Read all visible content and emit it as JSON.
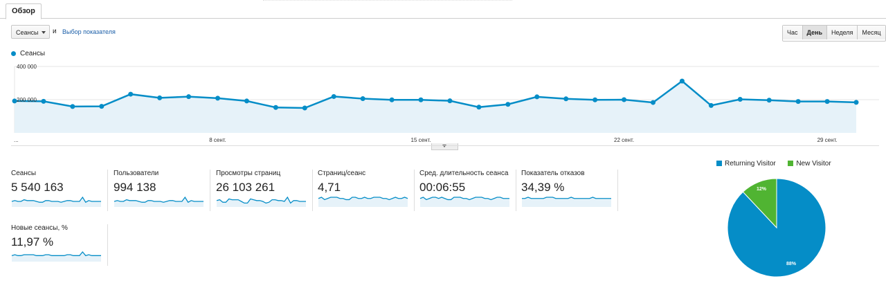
{
  "tab": {
    "label": "Обзор"
  },
  "controls": {
    "metric": "Сеансы",
    "and": "и",
    "choose_metric": "Выбор показателя"
  },
  "period": {
    "buttons": [
      "Час",
      "День",
      "Неделя",
      "Месяц"
    ],
    "active": "День"
  },
  "chart_data": {
    "type": "area",
    "series": [
      {
        "name": "Сеансы",
        "color": "#058dc7",
        "values": [
          192000,
          190000,
          159000,
          160000,
          233000,
          211000,
          218000,
          209000,
          192000,
          153000,
          150000,
          219000,
          206000,
          199000,
          199000,
          193000,
          155000,
          172000,
          217000,
          205000,
          199000,
          200000,
          183000,
          312000,
          165000,
          202000,
          197000,
          189000,
          189000,
          184000
        ]
      }
    ],
    "y_ticks": [
      "400 000",
      "200 000"
    ],
    "ylim": [
      0,
      400000
    ],
    "x_labels": [
      "...",
      "8 сент.",
      "15 сент.",
      "22 сент.",
      "29 сент."
    ],
    "legend": "top-left"
  },
  "kpis": [
    {
      "label": "Сеансы",
      "value": "5 540 163",
      "spark": [
        5,
        6,
        5,
        5,
        7,
        6,
        6,
        6,
        5,
        4,
        4,
        6,
        6,
        5,
        5,
        5,
        4,
        5,
        6,
        6,
        5,
        5,
        5,
        10,
        4,
        6,
        5,
        5,
        5,
        5
      ]
    },
    {
      "label": "Пользователи",
      "value": "994 138",
      "spark": [
        5,
        6,
        5,
        5,
        7,
        6,
        6,
        6,
        5,
        4,
        4,
        6,
        6,
        5,
        5,
        5,
        4,
        5,
        6,
        6,
        5,
        5,
        5,
        10,
        4,
        6,
        5,
        5,
        5,
        5
      ]
    },
    {
      "label": "Просмотры страниц",
      "value": "26 103 261",
      "spark": [
        6,
        7,
        4,
        4,
        8,
        7,
        7,
        7,
        5,
        3,
        3,
        8,
        7,
        6,
        6,
        5,
        3,
        4,
        7,
        7,
        6,
        6,
        5,
        10,
        3,
        6,
        6,
        5,
        5,
        5
      ]
    },
    {
      "label": "Страниц/сеанс",
      "value": "4,71",
      "spark": [
        6,
        7,
        5,
        6,
        7,
        7,
        7,
        6,
        6,
        5,
        5,
        7,
        7,
        6,
        6,
        7,
        6,
        6,
        7,
        7,
        7,
        6,
        6,
        5,
        6,
        7,
        6,
        6,
        7,
        6
      ]
    },
    {
      "label": "Сред. длительность сеанса",
      "value": "00:06:55",
      "spark": [
        6,
        7,
        5,
        6,
        7,
        7,
        6,
        7,
        6,
        5,
        5,
        7,
        7,
        7,
        6,
        6,
        5,
        6,
        7,
        7,
        7,
        6,
        6,
        5,
        6,
        7,
        7,
        6,
        6,
        6
      ]
    },
    {
      "label": "Показатель отказов",
      "value": "34,39 %",
      "spark": [
        6,
        6,
        7,
        6,
        6,
        6,
        6,
        6,
        7,
        7,
        7,
        6,
        6,
        6,
        6,
        6,
        7,
        6,
        6,
        6,
        6,
        6,
        6,
        7,
        6,
        6,
        6,
        6,
        6,
        6
      ]
    },
    {
      "label": "Новые сеансы, %",
      "value": "11,97 %",
      "spark": [
        5,
        6,
        5,
        5,
        6,
        6,
        6,
        6,
        5,
        5,
        5,
        6,
        6,
        5,
        5,
        5,
        5,
        5,
        6,
        6,
        5,
        5,
        5,
        9,
        5,
        6,
        5,
        5,
        5,
        5
      ]
    }
  ],
  "pie": {
    "legend": [
      {
        "label": "Returning Visitor",
        "color": "#058dc7"
      },
      {
        "label": "New Visitor",
        "color": "#50b432"
      }
    ],
    "slices": [
      {
        "label": "88%",
        "value": 88,
        "color": "#058dc7"
      },
      {
        "label": "12%",
        "value": 12,
        "color": "#50b432"
      }
    ]
  }
}
